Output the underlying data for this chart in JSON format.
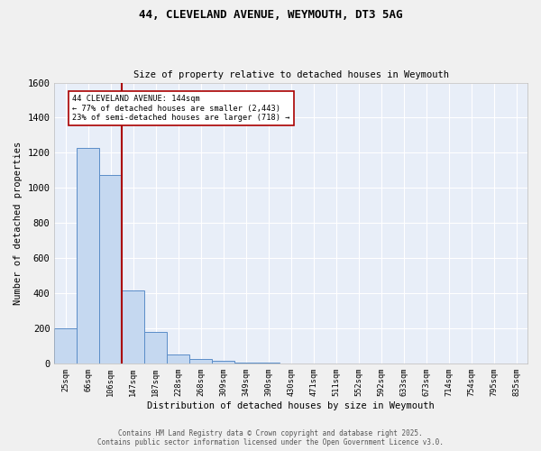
{
  "title_line1": "44, CLEVELAND AVENUE, WEYMOUTH, DT3 5AG",
  "title_line2": "Size of property relative to detached houses in Weymouth",
  "xlabel": "Distribution of detached houses by size in Weymouth",
  "ylabel": "Number of detached properties",
  "bar_labels": [
    "25sqm",
    "66sqm",
    "106sqm",
    "147sqm",
    "187sqm",
    "228sqm",
    "268sqm",
    "309sqm",
    "349sqm",
    "390sqm",
    "430sqm",
    "471sqm",
    "511sqm",
    "552sqm",
    "592sqm",
    "633sqm",
    "673sqm",
    "714sqm",
    "754sqm",
    "795sqm",
    "835sqm"
  ],
  "bar_values": [
    200,
    1230,
    1075,
    415,
    180,
    50,
    28,
    18,
    8,
    8,
    0,
    0,
    0,
    0,
    0,
    0,
    0,
    0,
    0,
    0,
    0
  ],
  "bar_color": "#c5d8f0",
  "bar_edgecolor": "#5b8dc8",
  "background_color": "#e8eef8",
  "grid_color": "#ffffff",
  "vline_x": 2.5,
  "vline_color": "#aa0000",
  "annotation_text": "44 CLEVELAND AVENUE: 144sqm\n← 77% of detached houses are smaller (2,443)\n23% of semi-detached houses are larger (718) →",
  "annotation_box_color": "#ffffff",
  "annotation_box_edgecolor": "#aa0000",
  "ylim": [
    0,
    1600
  ],
  "yticks": [
    0,
    200,
    400,
    600,
    800,
    1000,
    1200,
    1400,
    1600
  ],
  "footer_line1": "Contains HM Land Registry data © Crown copyright and database right 2025.",
  "footer_line2": "Contains public sector information licensed under the Open Government Licence v3.0.",
  "fig_bg": "#f0f0f0"
}
